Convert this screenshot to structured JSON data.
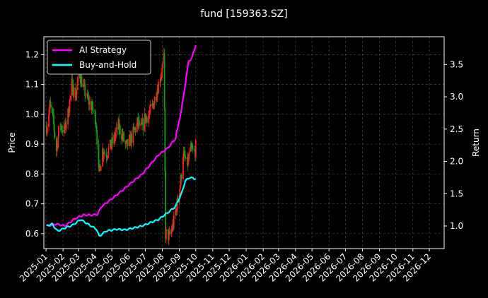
{
  "chart_data": {
    "type": "line",
    "title": "fund [159363.SZ]",
    "ylabel": "Price",
    "y2label": "Return",
    "background": "#000000",
    "grid": true,
    "legend": {
      "placement": "top-left",
      "entries": [
        {
          "name": "AI Strategy",
          "color": "#ff00ff"
        },
        {
          "name": "Buy-and-Hold",
          "color": "#00ffff"
        }
      ]
    },
    "candle_colors": {
      "up": "#ff2020",
      "down": "#14a014"
    },
    "ylim": [
      0.55,
      1.26
    ],
    "y2lim": [
      0.65,
      3.93
    ],
    "xlim": [
      "2024-12-28",
      "2026-12-28"
    ],
    "yticks": [
      "0.6",
      "0.7",
      "0.8",
      "0.9",
      "1.0",
      "1.1",
      "1.2"
    ],
    "y2ticks": [
      "1.0",
      "1.5",
      "2.0",
      "2.5",
      "3.0",
      "3.5"
    ],
    "xticks": [
      "2025-01",
      "2025-02",
      "2025-03",
      "2025-04",
      "2025-05",
      "2025-06",
      "2025-07",
      "2025-08",
      "2025-09",
      "2025-10",
      "2025-11",
      "2025-12",
      "2026-01",
      "2026-02",
      "2026-03",
      "2026-04",
      "2026-05",
      "2026-06",
      "2026-07",
      "2026-08",
      "2026-09",
      "2026-10",
      "2026-11",
      "2026-12"
    ],
    "price_path": [
      [
        "2025-01-02",
        0.96
      ],
      [
        "2025-01-08",
        1.03
      ],
      [
        "2025-01-14",
        0.98
      ],
      [
        "2025-01-20",
        0.88
      ],
      [
        "2025-01-26",
        0.97
      ],
      [
        "2025-02-03",
        0.94
      ],
      [
        "2025-02-10",
        1.0
      ],
      [
        "2025-02-17",
        1.1
      ],
      [
        "2025-02-24",
        1.06
      ],
      [
        "2025-03-03",
        1.14
      ],
      [
        "2025-03-10",
        1.09
      ],
      [
        "2025-03-17",
        1.05
      ],
      [
        "2025-03-24",
        1.03
      ],
      [
        "2025-04-01",
        0.99
      ],
      [
        "2025-04-03",
        0.96
      ],
      [
        "2025-04-07",
        0.8
      ],
      [
        "2025-04-14",
        0.88
      ],
      [
        "2025-04-21",
        0.87
      ],
      [
        "2025-04-28",
        0.89
      ],
      [
        "2025-05-06",
        0.92
      ],
      [
        "2025-05-13",
        0.96
      ],
      [
        "2025-05-20",
        0.93
      ],
      [
        "2025-05-27",
        0.89
      ],
      [
        "2025-06-03",
        0.91
      ],
      [
        "2025-06-10",
        0.94
      ],
      [
        "2025-06-17",
        0.97
      ],
      [
        "2025-06-24",
        0.95
      ],
      [
        "2025-07-01",
        0.99
      ],
      [
        "2025-07-08",
        1.0
      ],
      [
        "2025-07-15",
        1.03
      ],
      [
        "2025-07-22",
        1.08
      ],
      [
        "2025-07-29",
        1.13
      ],
      [
        "2025-08-04",
        1.19
      ],
      [
        "2025-08-07",
        0.6
      ],
      [
        "2025-08-14",
        0.59
      ],
      [
        "2025-08-21",
        0.63
      ],
      [
        "2025-08-28",
        0.7
      ],
      [
        "2025-09-04",
        0.78
      ],
      [
        "2025-09-08",
        0.87
      ],
      [
        "2025-09-15",
        0.83
      ],
      [
        "2025-09-22",
        0.88
      ],
      [
        "2025-09-29",
        0.87
      ],
      [
        "2025-10-01",
        0.89
      ]
    ],
    "series": [
      {
        "name": "AI Strategy",
        "color": "#ff00ff",
        "points": [
          [
            "2025-01-02",
            1.0
          ],
          [
            "2025-01-20",
            1.03
          ],
          [
            "2025-02-05",
            1.0
          ],
          [
            "2025-02-20",
            1.1
          ],
          [
            "2025-03-10",
            1.17
          ],
          [
            "2025-03-25",
            1.17
          ],
          [
            "2025-04-05",
            1.18
          ],
          [
            "2025-04-12",
            1.3
          ],
          [
            "2025-05-01",
            1.42
          ],
          [
            "2025-05-20",
            1.55
          ],
          [
            "2025-06-10",
            1.7
          ],
          [
            "2025-06-25",
            1.8
          ],
          [
            "2025-07-10",
            1.95
          ],
          [
            "2025-07-25",
            2.1
          ],
          [
            "2025-08-10",
            2.2
          ],
          [
            "2025-08-25",
            2.35
          ],
          [
            "2025-09-05",
            2.8
          ],
          [
            "2025-09-12",
            3.2
          ],
          [
            "2025-09-18",
            3.55
          ],
          [
            "2025-09-24",
            3.6
          ],
          [
            "2025-10-01",
            3.8
          ]
        ]
      },
      {
        "name": "Buy-and-Hold",
        "color": "#00ffff",
        "points": [
          [
            "2025-01-02",
            1.0
          ],
          [
            "2025-01-12",
            1.03
          ],
          [
            "2025-01-22",
            0.92
          ],
          [
            "2025-02-05",
            0.97
          ],
          [
            "2025-02-20",
            1.02
          ],
          [
            "2025-03-05",
            1.1
          ],
          [
            "2025-03-20",
            1.02
          ],
          [
            "2025-04-03",
            0.95
          ],
          [
            "2025-04-08",
            0.84
          ],
          [
            "2025-04-20",
            0.92
          ],
          [
            "2025-05-10",
            0.95
          ],
          [
            "2025-05-25",
            0.94
          ],
          [
            "2025-06-10",
            0.97
          ],
          [
            "2025-06-25",
            1.0
          ],
          [
            "2025-07-10",
            1.05
          ],
          [
            "2025-07-25",
            1.1
          ],
          [
            "2025-08-10",
            1.2
          ],
          [
            "2025-08-25",
            1.3
          ],
          [
            "2025-09-05",
            1.5
          ],
          [
            "2025-09-12",
            1.7
          ],
          [
            "2025-09-20",
            1.75
          ],
          [
            "2025-10-01",
            1.73
          ]
        ]
      }
    ]
  }
}
